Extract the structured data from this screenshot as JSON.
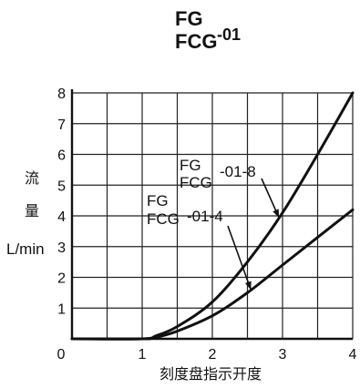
{
  "chart_data": {
    "type": "line",
    "title_line1": "FG",
    "title_line2_main": "FCG",
    "title_line2_sup": "-01",
    "ylabel_char1": "流",
    "ylabel_char2": "量",
    "ylabel_unit": "L/min",
    "xlabel": "刻度盘指示开度",
    "xlim": [
      0,
      4
    ],
    "ylim": [
      0,
      8
    ],
    "x_ticks": [
      "0",
      "1",
      "2",
      "3",
      "4"
    ],
    "y_ticks": [
      "1",
      "2",
      "3",
      "4",
      "5",
      "6",
      "7",
      "8"
    ],
    "grid": true,
    "series": [
      {
        "label_line1": "FG",
        "label_line2_main": "FCG",
        "label_line2_suffix": "-01-8",
        "x": [
          0,
          1,
          1.2,
          1.5,
          2,
          2.5,
          3,
          3.5,
          4
        ],
        "y": [
          0,
          0,
          0.1,
          0.4,
          1.2,
          2.5,
          4.1,
          6.0,
          8.0
        ]
      },
      {
        "label_line1": "FG",
        "label_line2_main": "FCG",
        "label_line2_suffix": "-01-4",
        "x": [
          0,
          1,
          1.2,
          1.5,
          2,
          2.5,
          3,
          3.5,
          4
        ],
        "y": [
          0,
          0,
          0.05,
          0.25,
          0.75,
          1.5,
          2.4,
          3.3,
          4.2
        ]
      }
    ],
    "annotations": [
      {
        "series_index": 0,
        "arrow_at_x": 2.95
      },
      {
        "series_index": 1,
        "arrow_at_x": 2.55
      }
    ]
  }
}
